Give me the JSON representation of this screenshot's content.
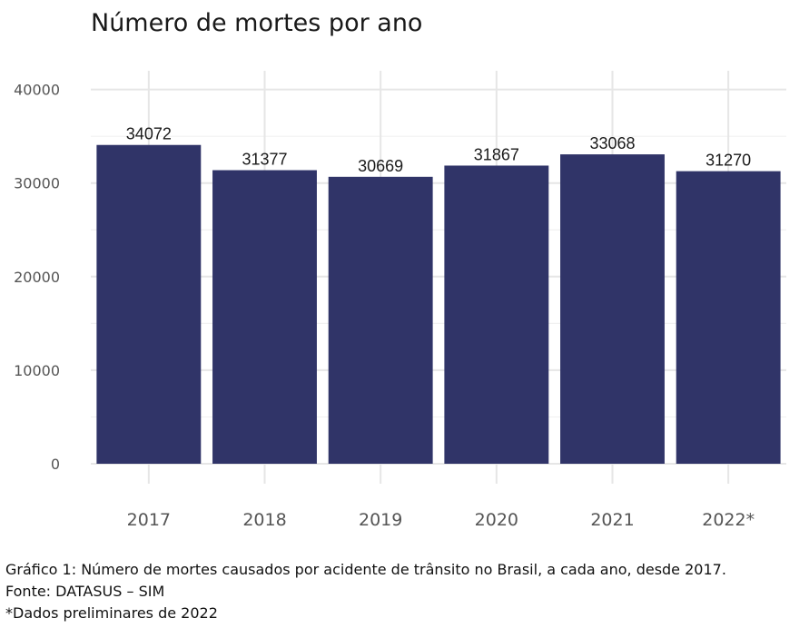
{
  "chart_data": {
    "type": "bar",
    "title": "Número de mortes por ano",
    "categories": [
      "2017",
      "2018",
      "2019",
      "2020",
      "2021",
      "2022*"
    ],
    "values": [
      34072,
      31377,
      30669,
      31867,
      33068,
      31270
    ],
    "data_labels": [
      "34072",
      "31377",
      "30669",
      "31867",
      "33068",
      "31270"
    ],
    "ylim": [
      0,
      42000
    ],
    "yticks": [
      0,
      10000,
      20000,
      30000,
      40000
    ],
    "ytick_labels": [
      "0",
      "10000",
      "20000",
      "30000",
      "40000"
    ],
    "bar_color": "#303468",
    "grid": true,
    "legend": "none"
  },
  "caption": {
    "line1": "Gráfico 1: Número de mortes causados por acidente de trânsito no Brasil, a cada ano, desde 2017.",
    "line2": "Fonte: DATASUS – SIM",
    "line3": "*Dados preliminares de 2022"
  }
}
